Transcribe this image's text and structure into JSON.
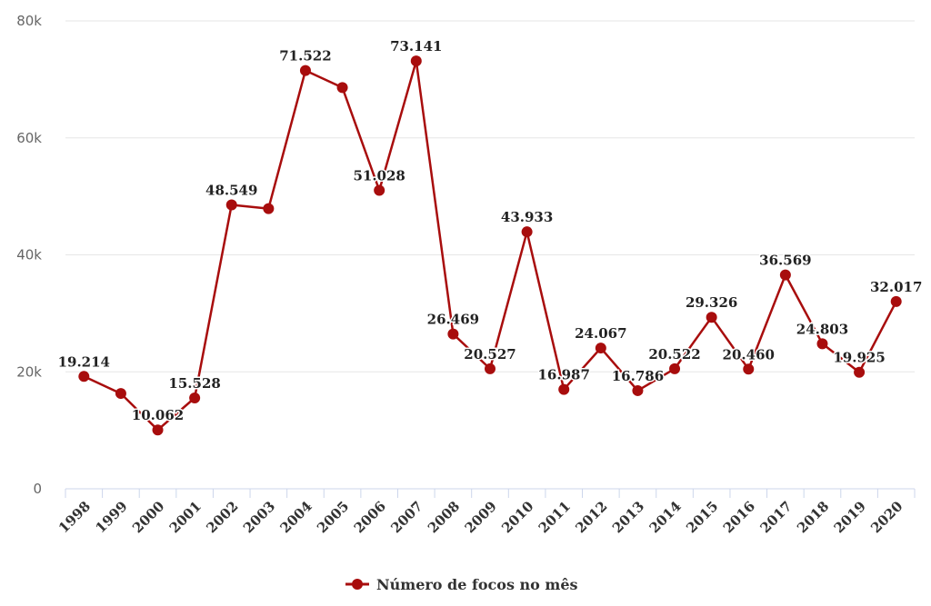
{
  "colors": {
    "series": "#a80d0d",
    "grid": "#e6e6e6",
    "axis": "#ccd6eb"
  },
  "chart_data": {
    "type": "line",
    "grid": true,
    "legend_position": "bottom-center",
    "ylim": [
      0,
      80000
    ],
    "yticks": [
      0,
      20000,
      40000,
      60000,
      80000
    ],
    "ytick_labels": [
      "0",
      "20k",
      "40k",
      "60k",
      "80k"
    ],
    "categories": [
      "1998",
      "1999",
      "2000",
      "2001",
      "2002",
      "2003",
      "2004",
      "2005",
      "2006",
      "2007",
      "2008",
      "2009",
      "2010",
      "2011",
      "2012",
      "2013",
      "2014",
      "2015",
      "2016",
      "2017",
      "2018",
      "2019",
      "2020"
    ],
    "series": [
      {
        "name": "Número de focos no mês",
        "values": [
          19214,
          16300,
          10062,
          15528,
          48549,
          47900,
          71522,
          68600,
          51028,
          73141,
          26469,
          20527,
          43933,
          16987,
          24067,
          16786,
          20522,
          29326,
          20460,
          36569,
          24803,
          19925,
          32017
        ],
        "labels": [
          "19.214",
          "",
          "10.062",
          "15.528",
          "48.549",
          "",
          "71.522",
          "",
          "51.028",
          "73.141",
          "26.469",
          "20.527",
          "43.933",
          "16.987",
          "24.067",
          "16.786",
          "20.522",
          "29.326",
          "20.460",
          "36.569",
          "24.803",
          "19.925",
          "32.017"
        ]
      }
    ]
  }
}
